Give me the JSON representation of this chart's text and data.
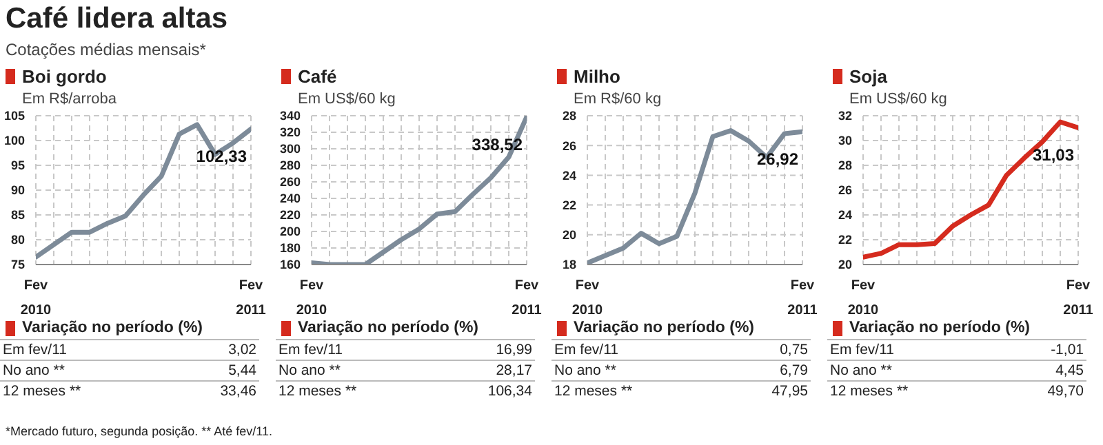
{
  "chart_data": [
    {
      "type": "other",
      "title": "Café lidera altas",
      "subtitle": "Cotações médias mensais*",
      "annotations": [
        "*Mercado futuro, segunda posição. ** Até fev/11."
      ]
    },
    {
      "type": "line",
      "title": "Boi gordo",
      "subtitle": "Em R$/arroba",
      "categories": [
        "Fev 2010",
        null,
        null,
        null,
        null,
        null,
        null,
        null,
        null,
        null,
        null,
        null,
        "Fev 2011"
      ],
      "series": [
        {
          "color": "#7d8b99",
          "values": [
            76.5,
            79,
            81.5,
            81.5,
            83.3,
            84.8,
            89,
            92.8,
            101.3,
            103.2,
            97.2,
            99.5,
            102.33
          ]
        }
      ],
      "ylim": [
        75,
        105
      ],
      "yticks": [
        75,
        80,
        85,
        90,
        95,
        100,
        105
      ],
      "grid": true,
      "marker": "none",
      "annotations": [
        {
          "text": "102,33",
          "x": "Fev 2011",
          "y": 102.33
        },
        "Variação no período (%)",
        "Em fev/11",
        "3,02",
        "No ano **",
        "5,44",
        "12 meses **",
        "33,46"
      ]
    },
    {
      "type": "line",
      "title": "Café",
      "subtitle": "Em US$/60 kg",
      "categories": [
        "Fev 2010",
        null,
        null,
        null,
        null,
        null,
        null,
        null,
        null,
        null,
        null,
        null,
        "Fev 2011"
      ],
      "series": [
        {
          "color": "#7d8b99",
          "values": [
            162,
            160,
            160,
            160,
            175,
            190,
            203,
            221,
            224,
            245,
            265,
            290,
            338.52
          ]
        }
      ],
      "ylim": [
        160,
        340
      ],
      "yticks": [
        160,
        180,
        200,
        220,
        240,
        260,
        280,
        300,
        320,
        340
      ],
      "grid": true,
      "marker": "none",
      "annotations": [
        {
          "text": "338,52",
          "x": "Fev 2011",
          "y": 338.52
        },
        "Variação no período (%)",
        "Em fev/11",
        "16,99",
        "No ano **",
        "28,17",
        "12 meses **",
        "106,34"
      ]
    },
    {
      "type": "line",
      "title": "Milho",
      "subtitle": "Em R$/60 kg",
      "categories": [
        "Fev 2010",
        null,
        null,
        null,
        null,
        null,
        null,
        null,
        null,
        null,
        null,
        null,
        "Fev 2011"
      ],
      "series": [
        {
          "color": "#7d8b99",
          "values": [
            18.1,
            18.6,
            19.1,
            20.1,
            19.4,
            19.9,
            22.8,
            26.6,
            27.0,
            26.3,
            25.2,
            26.8,
            26.92
          ]
        }
      ],
      "ylim": [
        18,
        28
      ],
      "yticks": [
        18,
        20,
        22,
        24,
        26,
        28
      ],
      "grid": true,
      "marker": "none",
      "annotations": [
        {
          "text": "26,92",
          "x": "Fev 2011",
          "y": 26.92
        },
        "Variação no período (%)",
        "Em fev/11",
        "0,75",
        "No ano **",
        "6,79",
        "12 meses **",
        "47,95"
      ]
    },
    {
      "type": "line",
      "title": "Soja",
      "subtitle": "Em US$/60 kg",
      "categories": [
        "Fev 2010",
        null,
        null,
        null,
        null,
        null,
        null,
        null,
        null,
        null,
        null,
        null,
        "Fev 2011"
      ],
      "series": [
        {
          "color": "#d52b1e",
          "values": [
            20.6,
            20.9,
            21.6,
            21.6,
            21.7,
            23.1,
            24.0,
            24.8,
            27.2,
            28.6,
            29.9,
            31.5,
            31.03
          ]
        }
      ],
      "ylim": [
        20,
        32
      ],
      "yticks": [
        20,
        22,
        24,
        26,
        28,
        30,
        32
      ],
      "grid": true,
      "marker": "none",
      "annotations": [
        {
          "text": "31,03",
          "x": "Fev 2011",
          "y": 31.03
        },
        "Variação no período (%)",
        "Em fev/11",
        "-1,01",
        "No ano **",
        "4,45",
        "12 meses **",
        "49,70"
      ]
    }
  ]
}
